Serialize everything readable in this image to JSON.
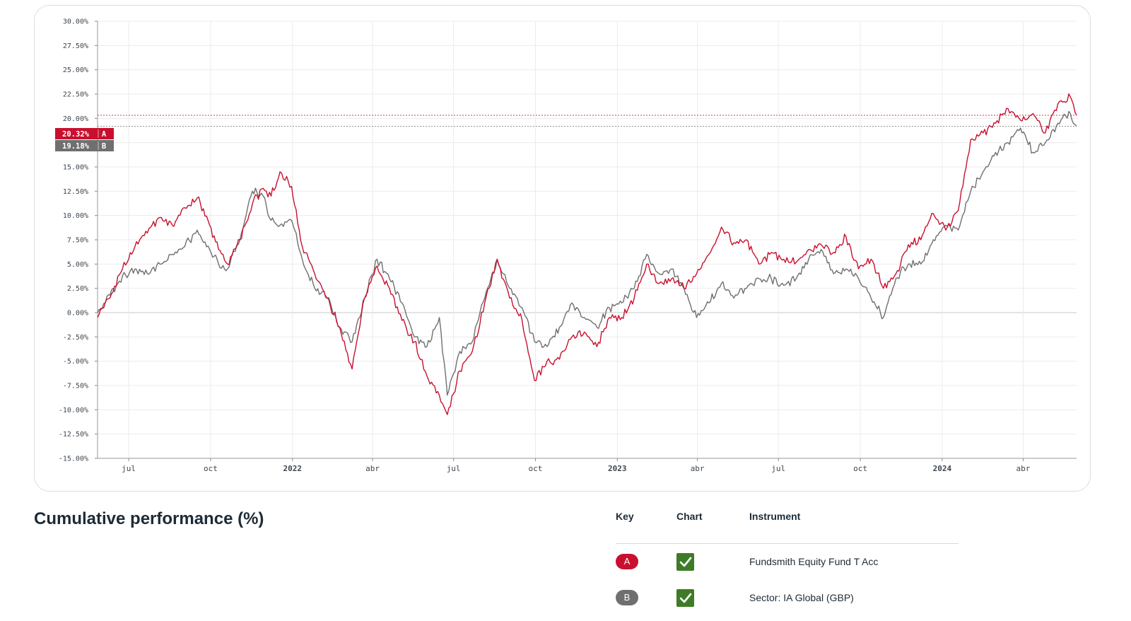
{
  "chart_data": {
    "type": "line",
    "ylim": [
      -15,
      30
    ],
    "y_ticks": [
      "30.00%",
      "27.50%",
      "25.00%",
      "22.50%",
      "20.00%",
      "17.50%",
      "15.00%",
      "12.50%",
      "10.00%",
      "7.50%",
      "5.00%",
      "2.50%",
      "0.00%",
      "-2.50%",
      "-5.00%",
      "-7.50%",
      "-10.00%",
      "-12.50%",
      "-15.00%"
    ],
    "x_ticks": [
      {
        "date": "2021-07-01",
        "label": "jul"
      },
      {
        "date": "2021-10-01",
        "label": "oct"
      },
      {
        "date": "2022-01-01",
        "label": "2022"
      },
      {
        "date": "2022-04-01",
        "label": "abr"
      },
      {
        "date": "2022-07-01",
        "label": "jul"
      },
      {
        "date": "2022-10-01",
        "label": "oct"
      },
      {
        "date": "2023-01-01",
        "label": "2023"
      },
      {
        "date": "2023-04-01",
        "label": "abr"
      },
      {
        "date": "2023-07-01",
        "label": "jul"
      },
      {
        "date": "2023-10-01",
        "label": "oct"
      },
      {
        "date": "2024-01-01",
        "label": "2024"
      },
      {
        "date": "2024-04-01",
        "label": "abr"
      }
    ],
    "x_range": [
      "2021-05-27",
      "2024-05-31"
    ],
    "grid": true,
    "series": [
      {
        "name": "A",
        "color": "#c8102e",
        "last_value": 20.32,
        "last_label": "20.32%",
        "points": [
          [
            "2021-05-27",
            -0.5
          ],
          [
            "2021-06-10",
            1.5
          ],
          [
            "2021-06-24",
            4.5
          ],
          [
            "2021-07-08",
            6.8
          ],
          [
            "2021-07-22",
            8.2
          ],
          [
            "2021-08-05",
            9.8
          ],
          [
            "2021-08-19",
            9.0
          ],
          [
            "2021-09-02",
            10.8
          ],
          [
            "2021-09-16",
            11.8
          ],
          [
            "2021-09-30",
            9.0
          ],
          [
            "2021-10-10",
            6.5
          ],
          [
            "2021-10-20",
            5.0
          ],
          [
            "2021-11-03",
            7.5
          ],
          [
            "2021-11-17",
            11.2
          ],
          [
            "2021-11-29",
            12.8
          ],
          [
            "2021-12-08",
            12.0
          ],
          [
            "2021-12-18",
            14.5
          ],
          [
            "2021-12-31",
            13.0
          ],
          [
            "2022-01-12",
            6.8
          ],
          [
            "2022-01-26",
            4.0
          ],
          [
            "2022-02-09",
            1.5
          ],
          [
            "2022-02-23",
            -1.5
          ],
          [
            "2022-03-09",
            -5.8
          ],
          [
            "2022-03-23",
            1.5
          ],
          [
            "2022-04-06",
            4.8
          ],
          [
            "2022-04-20",
            2.5
          ],
          [
            "2022-05-04",
            -0.8
          ],
          [
            "2022-05-18",
            -3.0
          ],
          [
            "2022-06-01",
            -6.5
          ],
          [
            "2022-06-15",
            -8.5
          ],
          [
            "2022-06-24",
            -10.5
          ],
          [
            "2022-07-08",
            -6.0
          ],
          [
            "2022-07-22",
            -4.0
          ],
          [
            "2022-08-05",
            1.0
          ],
          [
            "2022-08-19",
            5.5
          ],
          [
            "2022-09-02",
            1.5
          ],
          [
            "2022-09-16",
            -0.8
          ],
          [
            "2022-09-30",
            -7.0
          ],
          [
            "2022-10-14",
            -5.0
          ],
          [
            "2022-10-28",
            -4.8
          ],
          [
            "2022-11-11",
            -2.5
          ],
          [
            "2022-11-25",
            -2.0
          ],
          [
            "2022-12-09",
            -3.5
          ],
          [
            "2022-12-23",
            -0.5
          ],
          [
            "2023-01-06",
            -0.5
          ],
          [
            "2023-01-20",
            1.5
          ],
          [
            "2023-02-03",
            5.0
          ],
          [
            "2023-02-17",
            3.0
          ],
          [
            "2023-03-03",
            3.5
          ],
          [
            "2023-03-17",
            2.5
          ],
          [
            "2023-03-31",
            4.0
          ],
          [
            "2023-04-14",
            6.0
          ],
          [
            "2023-04-28",
            8.8
          ],
          [
            "2023-05-12",
            7.2
          ],
          [
            "2023-05-26",
            7.5
          ],
          [
            "2023-06-09",
            5.0
          ],
          [
            "2023-06-23",
            6.2
          ],
          [
            "2023-07-07",
            5.5
          ],
          [
            "2023-07-21",
            5.2
          ],
          [
            "2023-08-04",
            6.5
          ],
          [
            "2023-08-18",
            7.0
          ],
          [
            "2023-09-01",
            6.2
          ],
          [
            "2023-09-15",
            7.8
          ],
          [
            "2023-09-29",
            4.5
          ],
          [
            "2023-10-13",
            5.5
          ],
          [
            "2023-10-27",
            2.5
          ],
          [
            "2023-11-10",
            4.0
          ],
          [
            "2023-11-24",
            7.0
          ],
          [
            "2023-12-08",
            7.5
          ],
          [
            "2023-12-22",
            10.2
          ],
          [
            "2024-01-05",
            8.5
          ],
          [
            "2024-01-19",
            10.5
          ],
          [
            "2024-02-02",
            17.8
          ],
          [
            "2024-02-16",
            18.5
          ],
          [
            "2024-03-01",
            19.5
          ],
          [
            "2024-03-15",
            21.0
          ],
          [
            "2024-03-29",
            19.8
          ],
          [
            "2024-04-12",
            20.5
          ],
          [
            "2024-04-26",
            18.5
          ],
          [
            "2024-05-10",
            21.5
          ],
          [
            "2024-05-24",
            22.2
          ],
          [
            "2024-05-31",
            20.32
          ]
        ]
      },
      {
        "name": "B",
        "color": "#6f6f6f",
        "last_value": 19.18,
        "last_label": "19.18%",
        "points": [
          [
            "2021-05-27",
            0.0
          ],
          [
            "2021-06-10",
            1.8
          ],
          [
            "2021-06-24",
            3.8
          ],
          [
            "2021-07-08",
            4.5
          ],
          [
            "2021-07-22",
            4.0
          ],
          [
            "2021-08-05",
            5.0
          ],
          [
            "2021-08-19",
            6.0
          ],
          [
            "2021-09-02",
            6.8
          ],
          [
            "2021-09-16",
            8.5
          ],
          [
            "2021-09-30",
            6.5
          ],
          [
            "2021-10-10",
            5.0
          ],
          [
            "2021-10-20",
            4.5
          ],
          [
            "2021-11-03",
            7.5
          ],
          [
            "2021-11-17",
            12.5
          ],
          [
            "2021-11-29",
            12.0
          ],
          [
            "2021-12-08",
            9.5
          ],
          [
            "2021-12-18",
            9.0
          ],
          [
            "2021-12-31",
            9.5
          ],
          [
            "2022-01-12",
            5.5
          ],
          [
            "2022-01-26",
            2.5
          ],
          [
            "2022-02-09",
            1.5
          ],
          [
            "2022-02-23",
            -1.5
          ],
          [
            "2022-03-09",
            -3.0
          ],
          [
            "2022-03-23",
            1.5
          ],
          [
            "2022-04-06",
            5.5
          ],
          [
            "2022-04-20",
            3.5
          ],
          [
            "2022-05-04",
            1.0
          ],
          [
            "2022-05-18",
            -2.5
          ],
          [
            "2022-06-01",
            -3.5
          ],
          [
            "2022-06-15",
            -0.5
          ],
          [
            "2022-06-24",
            -8.5
          ],
          [
            "2022-07-08",
            -4.0
          ],
          [
            "2022-07-22",
            -3.0
          ],
          [
            "2022-08-05",
            1.5
          ],
          [
            "2022-08-19",
            5.5
          ],
          [
            "2022-09-02",
            2.5
          ],
          [
            "2022-09-16",
            0.5
          ],
          [
            "2022-09-30",
            -3.0
          ],
          [
            "2022-10-14",
            -3.5
          ],
          [
            "2022-10-28",
            -1.5
          ],
          [
            "2022-11-11",
            1.0
          ],
          [
            "2022-11-25",
            -0.5
          ],
          [
            "2022-12-09",
            -1.5
          ],
          [
            "2022-12-23",
            0.5
          ],
          [
            "2023-01-06",
            1.0
          ],
          [
            "2023-01-20",
            2.5
          ],
          [
            "2023-02-03",
            6.0
          ],
          [
            "2023-02-17",
            4.0
          ],
          [
            "2023-03-03",
            4.5
          ],
          [
            "2023-03-17",
            2.5
          ],
          [
            "2023-03-31",
            -0.5
          ],
          [
            "2023-04-14",
            1.0
          ],
          [
            "2023-04-28",
            3.0
          ],
          [
            "2023-05-12",
            1.5
          ],
          [
            "2023-05-26",
            2.5
          ],
          [
            "2023-06-09",
            3.5
          ],
          [
            "2023-06-23",
            3.5
          ],
          [
            "2023-07-07",
            2.8
          ],
          [
            "2023-07-21",
            3.5
          ],
          [
            "2023-08-04",
            5.5
          ],
          [
            "2023-08-18",
            6.5
          ],
          [
            "2023-09-01",
            4.0
          ],
          [
            "2023-09-15",
            4.5
          ],
          [
            "2023-09-29",
            3.5
          ],
          [
            "2023-10-13",
            1.5
          ],
          [
            "2023-10-27",
            -0.5
          ],
          [
            "2023-11-10",
            3.5
          ],
          [
            "2023-11-24",
            5.0
          ],
          [
            "2023-12-08",
            5.0
          ],
          [
            "2023-12-22",
            7.5
          ],
          [
            "2024-01-05",
            9.0
          ],
          [
            "2024-01-19",
            8.5
          ],
          [
            "2024-02-02",
            12.5
          ],
          [
            "2024-02-16",
            14.5
          ],
          [
            "2024-03-01",
            16.5
          ],
          [
            "2024-03-15",
            17.5
          ],
          [
            "2024-03-29",
            19.0
          ],
          [
            "2024-04-12",
            16.5
          ],
          [
            "2024-04-26",
            17.5
          ],
          [
            "2024-05-10",
            19.5
          ],
          [
            "2024-05-24",
            20.5
          ],
          [
            "2024-05-31",
            19.18
          ]
        ]
      }
    ]
  },
  "section": {
    "title": "Cumulative performance (%)"
  },
  "key_table": {
    "headers": {
      "key": "Key",
      "chart": "Chart",
      "instrument": "Instrument"
    },
    "rows": [
      {
        "key": "A",
        "badge_color": "#c8102e",
        "chart_checked": true,
        "instrument": "Fundsmith Equity Fund T Acc"
      },
      {
        "key": "B",
        "badge_color": "#6f6f6f",
        "chart_checked": true,
        "instrument": "Sector: IA Global (GBP)"
      }
    ]
  }
}
